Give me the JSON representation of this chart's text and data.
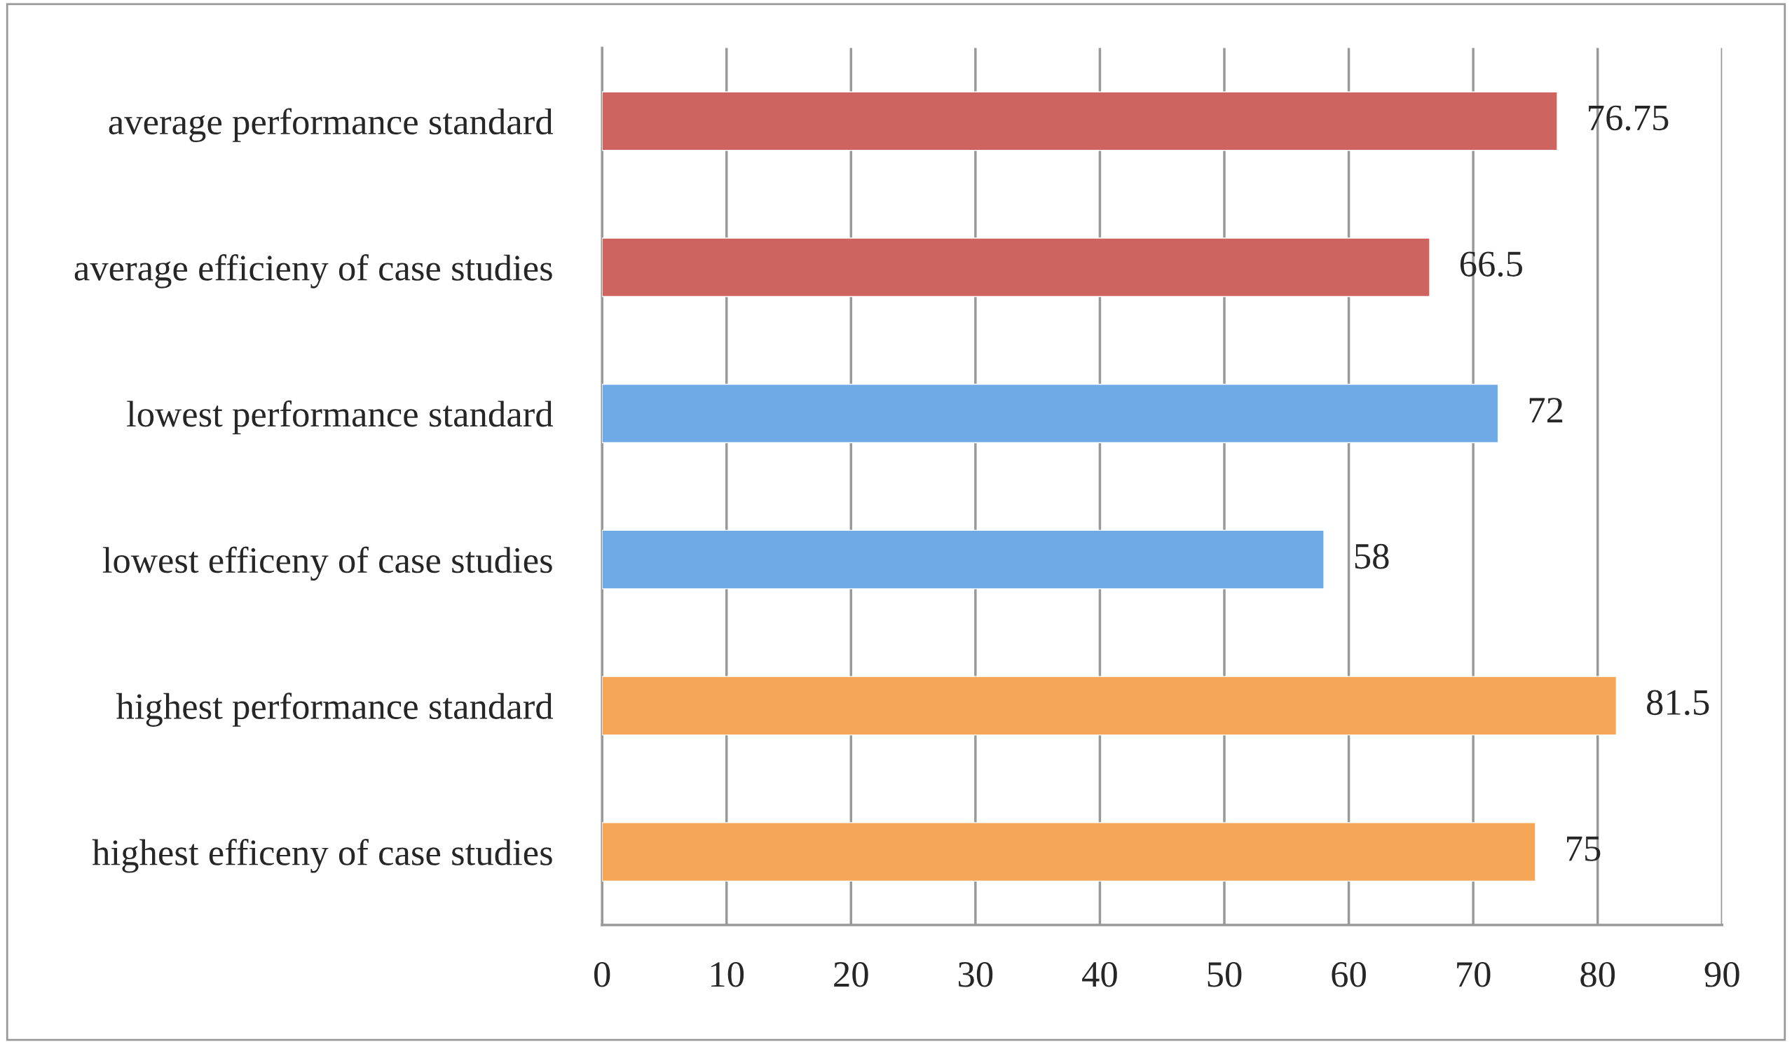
{
  "chart_data": {
    "type": "bar",
    "orientation": "horizontal",
    "categories": [
      "average performance standard",
      "average efficieny of case studies",
      "lowest performance standard",
      "lowest efficeny of case studies",
      "highest performance standard",
      "highest efficeny of case studies"
    ],
    "values": [
      76.75,
      66.5,
      72,
      58,
      81.5,
      75
    ],
    "colors": [
      "#cd6460",
      "#cd6460",
      "#6fa9e6",
      "#6fa9e6",
      "#f5a657",
      "#f5a657"
    ],
    "xlim": [
      0,
      90
    ],
    "xticks": [
      0,
      10,
      20,
      30,
      40,
      50,
      60,
      70,
      80,
      90
    ],
    "grid": "x",
    "data_labels": true
  }
}
